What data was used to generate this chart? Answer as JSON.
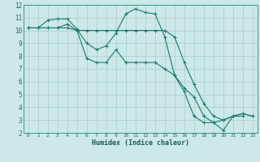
{
  "xlabel": "Humidex (Indice chaleur)",
  "bg_color": "#cce8e8",
  "grid_color": "#aacccc",
  "line_color": "#1a7a6e",
  "xlim": [
    -0.5,
    23.5
  ],
  "ylim": [
    2,
    12
  ],
  "xticks": [
    0,
    1,
    2,
    3,
    4,
    5,
    6,
    7,
    8,
    9,
    10,
    11,
    12,
    13,
    14,
    15,
    16,
    17,
    18,
    19,
    20,
    21,
    22,
    23
  ],
  "yticks": [
    2,
    3,
    4,
    5,
    6,
    7,
    8,
    9,
    10,
    11,
    12
  ],
  "series": [
    {
      "x": [
        0,
        1,
        2,
        3,
        4,
        5,
        6,
        7,
        8,
        9,
        10,
        11,
        12,
        13,
        14,
        15,
        16,
        17,
        18,
        19,
        20,
        21,
        22,
        23
      ],
      "y": [
        10.2,
        10.2,
        10.8,
        10.9,
        10.9,
        10.1,
        9.0,
        8.5,
        8.8,
        9.8,
        11.3,
        11.7,
        11.4,
        11.3,
        9.5,
        6.5,
        5.2,
        3.3,
        2.8,
        2.8,
        3.0,
        3.3,
        3.3,
        null
      ]
    },
    {
      "x": [
        0,
        1,
        2,
        3,
        4,
        5,
        6,
        7,
        8,
        9,
        10,
        11,
        12,
        13,
        14,
        15,
        16,
        17,
        18,
        19,
        20,
        21,
        22,
        23
      ],
      "y": [
        10.2,
        10.2,
        10.2,
        10.2,
        10.2,
        10.0,
        10.0,
        10.0,
        10.0,
        10.0,
        10.0,
        10.0,
        10.0,
        10.0,
        10.0,
        9.5,
        7.5,
        5.8,
        4.3,
        3.3,
        3.0,
        3.3,
        3.5,
        3.3
      ]
    },
    {
      "x": [
        0,
        1,
        2,
        3,
        4,
        5,
        6,
        7,
        8,
        9,
        10,
        11,
        12,
        13,
        14,
        15,
        16,
        17,
        18,
        19,
        20,
        21,
        22,
        23
      ],
      "y": [
        10.2,
        10.2,
        10.2,
        10.2,
        10.5,
        10.0,
        7.8,
        7.5,
        7.5,
        8.5,
        7.5,
        7.5,
        7.5,
        7.5,
        7.0,
        6.5,
        5.5,
        4.8,
        3.3,
        2.8,
        2.2,
        3.3,
        3.5,
        3.3
      ]
    }
  ]
}
